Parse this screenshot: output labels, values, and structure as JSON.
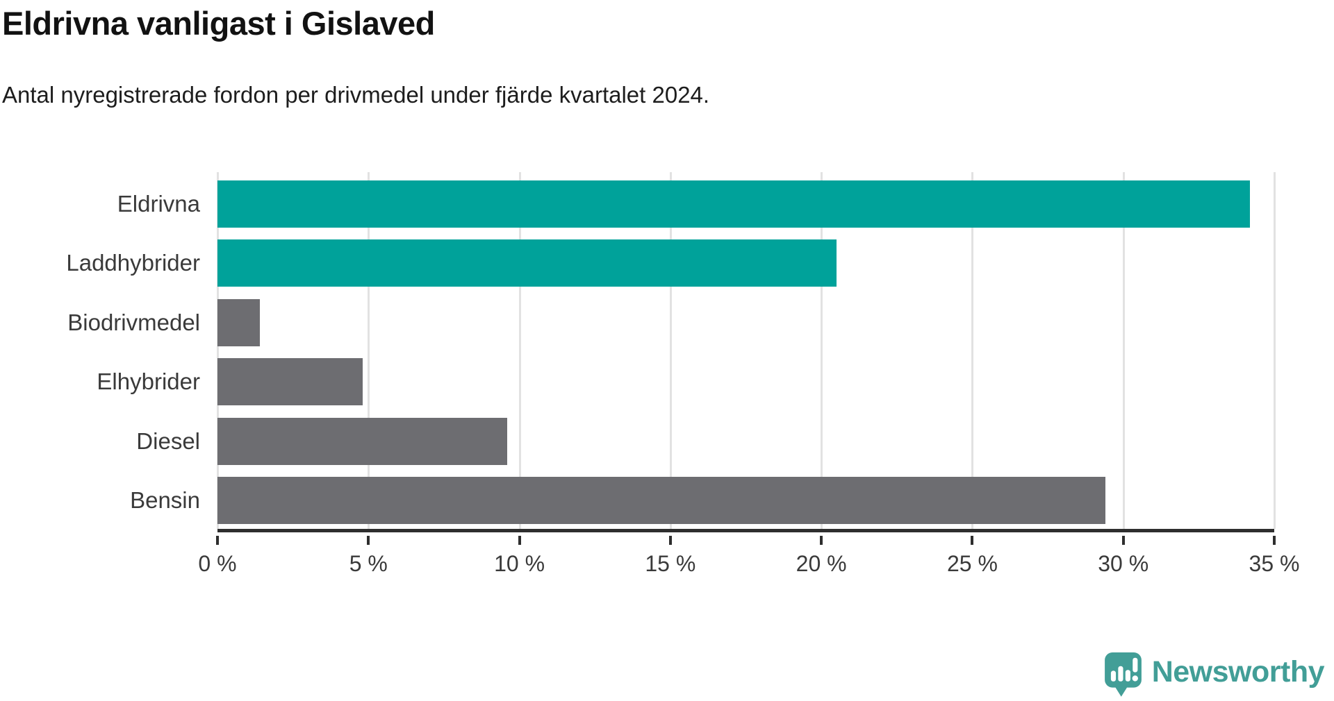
{
  "title": "Eldrivna vanligast i Gislaved",
  "subtitle": "Antal nyregistrerade fordon per drivmedel under fjärde kvartalet 2024.",
  "chart_data": {
    "type": "bar",
    "orientation": "horizontal",
    "title": "Eldrivna vanligast i Gislaved",
    "subtitle": "Antal nyregistrerade fordon per drivmedel under fjärde kvartalet 2024.",
    "categories": [
      "Eldrivna",
      "Laddhybrider",
      "Biodrivmedel",
      "Elhybrider",
      "Diesel",
      "Bensin"
    ],
    "values": [
      34.2,
      20.5,
      1.4,
      4.8,
      9.6,
      29.4
    ],
    "unit": "%",
    "xlim": [
      0,
      35
    ],
    "x_tick_step": 5,
    "x_tick_labels": [
      "0 %",
      "5 %",
      "10 %",
      "15 %",
      "20 %",
      "25 %",
      "30 %",
      "35 %"
    ],
    "grid": true,
    "legend": false,
    "bar_colors": [
      "#00a29a",
      "#00a29a",
      "#6d6d71",
      "#6d6d71",
      "#6d6d71",
      "#6d6d71"
    ],
    "highlight_color": "#00a29a",
    "default_color": "#6d6d71",
    "gridline_color": "#e2e2e2",
    "axis_color": "#2e2e2e",
    "text_color": "#3a3a3a"
  },
  "branding": {
    "logo_text": "Newsworthy",
    "logo_color": "#429e97",
    "logo_icon": "bar-chart-speech-bubble-icon"
  }
}
